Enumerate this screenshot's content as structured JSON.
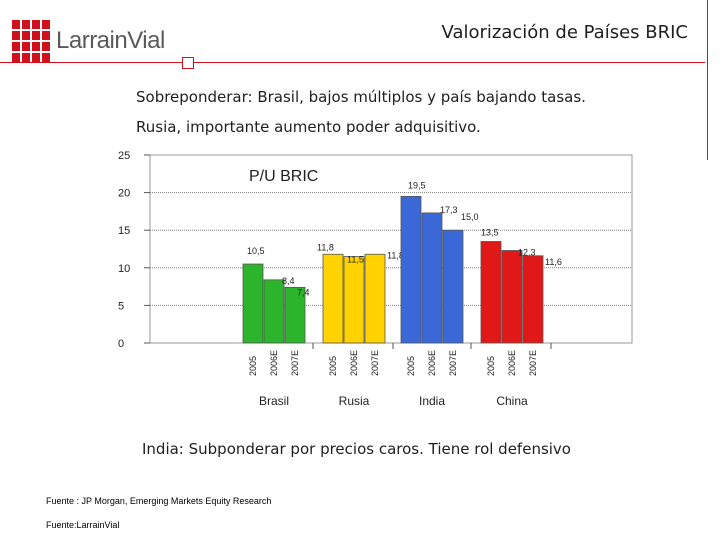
{
  "header": {
    "brand": "LarrainVial",
    "title": "Valorización de Países BRIC"
  },
  "bullets": [
    "Sobreponderar: Brasil, bajos múltiplos y país bajando tasas.",
    "Rusia, importante aumento poder adquisitivo."
  ],
  "note": "India: Subponderar por  precios caros. Tiene rol defensivo",
  "sources": [
    "Fuente : JP Morgan, Emerging Markets Equity Research",
    "Fuente:LarrainVial"
  ],
  "colors": {
    "brand_red": "#d0101d",
    "brasil": "#2cb42c",
    "rusia": "#ffd200",
    "india": "#3a68d6",
    "china": "#e01818"
  },
  "chart_data": {
    "type": "bar",
    "title": "P/U BRIC",
    "ylim": [
      0,
      25
    ],
    "yticks": [
      "0",
      "5",
      "10",
      "15",
      "20",
      "25"
    ],
    "grid": true,
    "groups": [
      {
        "name": "Brasil",
        "color": "#2cb42c",
        "bars": [
          {
            "x": "2005",
            "value": 10.5,
            "label": "10,5"
          },
          {
            "x": "2006E",
            "value": 8.4,
            "label": "8,4"
          },
          {
            "x": "2007E",
            "value": 7.4,
            "label": "7,4"
          }
        ]
      },
      {
        "name": "Rusia",
        "color": "#ffd200",
        "bars": [
          {
            "x": "2005",
            "value": 11.8,
            "label": "11,8"
          },
          {
            "x": "2006E",
            "value": 11.5,
            "label": "11,5"
          },
          {
            "x": "2007E",
            "value": 11.8,
            "label": "11,8"
          }
        ]
      },
      {
        "name": "India",
        "color": "#3a68d6",
        "bars": [
          {
            "x": "2005",
            "value": 19.5,
            "label": "19,5"
          },
          {
            "x": "2006E",
            "value": 17.3,
            "label": "17,3"
          },
          {
            "x": "2007E",
            "value": 15.0,
            "label": "15,0"
          }
        ]
      },
      {
        "name": "China",
        "color": "#e01818",
        "bars": [
          {
            "x": "2005",
            "value": 13.5,
            "label": "13,5"
          },
          {
            "x": "2006E",
            "value": 12.3,
            "label": "12,3"
          },
          {
            "x": "2007E",
            "value": 11.6,
            "label": "11,6"
          }
        ]
      }
    ]
  }
}
